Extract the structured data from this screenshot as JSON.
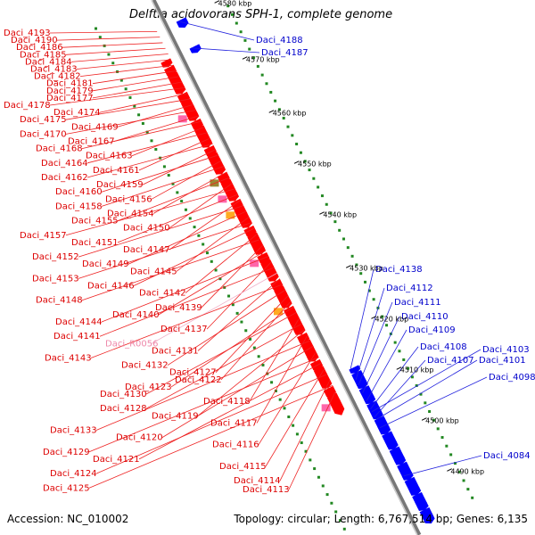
{
  "title": "Delftia acidovorans SPH-1, complete genome",
  "footer": {
    "accession": "Accession: NC_010002",
    "topology": "Topology: circular; Length: 6,767,514 bp; Genes: 6,135"
  },
  "ticks": [
    "4580 kbp",
    "4570 kbp",
    "4560 kbp",
    "4550 kbp",
    "4540 kbp",
    "4530 kbp",
    "4520 kbp",
    "4510 kbp",
    "4500 kbp",
    "4490 kbp"
  ],
  "colors": {
    "forward_gene": "#ff0000",
    "reverse_gene": "#0000ff",
    "rna_gene": "#ff66aa",
    "other_feature": "#ffaa22",
    "backbone": "#777777",
    "gc_tick": "#228822"
  },
  "labels_left": [
    "Daci_4193",
    "Daci_4190",
    "Daci_4186",
    "Daci_4185",
    "Daci_4184",
    "Daci_4183",
    "Daci_4182",
    "Daci_4181",
    "Daci_4179",
    "Daci_4177",
    "Daci_4178",
    "Daci_4174",
    "Daci_4175",
    "Daci_4169",
    "Daci_4170",
    "Daci_4167",
    "Daci_4168",
    "Daci_4163",
    "Daci_4164",
    "Daci_4161",
    "Daci_4162",
    "Daci_4159",
    "Daci_4160",
    "Daci_4156",
    "Daci_4158",
    "Daci_4154",
    "Daci_4155",
    "Daci_4150",
    "Daci_4157",
    "Daci_4151",
    "Daci_4147",
    "Daci_4152",
    "Daci_4149",
    "Daci_4145",
    "Daci_4153",
    "Daci_4146",
    "Daci_4142",
    "Daci_4148",
    "Daci_4139",
    "Daci_4140",
    "Daci_4144",
    "Daci_4137",
    "Daci_4141",
    "Daci_R0056",
    "Daci_4131",
    "Daci_4143",
    "Daci_4132",
    "Daci_4127",
    "Daci_4122",
    "Daci_4123",
    "Daci_4130",
    "Daci_4118",
    "Daci_4128",
    "Daci_4119",
    "Daci_4117",
    "Daci_4133",
    "Daci_4120",
    "Daci_4116",
    "Daci_4129",
    "Daci_4121",
    "Daci_4115",
    "Daci_4124",
    "Daci_4114",
    "Daci_4125",
    "Daci_4113"
  ],
  "labels_right": [
    "Daci_4188",
    "Daci_4187",
    "Daci_4138",
    "Daci_4112",
    "Daci_4111",
    "Daci_4110",
    "Daci_4109",
    "Daci_4108",
    "Daci_4103",
    "Daci_4107",
    "Daci_4101",
    "Daci_4098",
    "Daci_4084"
  ]
}
